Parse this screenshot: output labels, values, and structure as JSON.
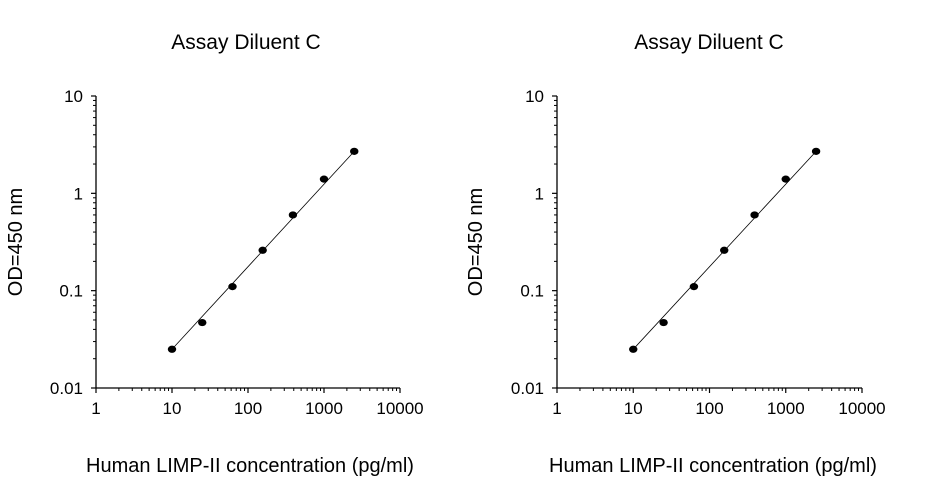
{
  "chart_data": [
    {
      "type": "scatter",
      "title": "Assay Diluent C",
      "xlabel": "Human LIMP-II concentration (pg/ml)",
      "ylabel": "OD=450 nm",
      "xscale": "log",
      "yscale": "log",
      "xlim": [
        1,
        10000
      ],
      "ylim": [
        0.01,
        10
      ],
      "xticks": [
        "1",
        "10",
        "100",
        "1000",
        "10000"
      ],
      "yticks": [
        "0.01",
        "0.1",
        "1",
        "10"
      ],
      "grid": false,
      "fit_line": true,
      "x": [
        10,
        25,
        62.5,
        156,
        390,
        1000,
        2500
      ],
      "y": [
        0.025,
        0.047,
        0.11,
        0.26,
        0.6,
        1.4,
        2.7
      ]
    },
    {
      "type": "scatter",
      "title": "Assay Diluent C",
      "xlabel": "Human LIMP-II concentration (pg/ml)",
      "ylabel": "OD=450 nm",
      "xscale": "log",
      "yscale": "log",
      "xlim": [
        1,
        10000
      ],
      "ylim": [
        0.01,
        10
      ],
      "xticks": [
        "1",
        "10",
        "100",
        "1000",
        "10000"
      ],
      "yticks": [
        "0.01",
        "0.1",
        "1",
        "10"
      ],
      "grid": false,
      "fit_line": true,
      "x": [
        10,
        25,
        62.5,
        156,
        390,
        1000,
        2500
      ],
      "y": [
        0.025,
        0.047,
        0.11,
        0.26,
        0.6,
        1.4,
        2.7
      ]
    }
  ]
}
